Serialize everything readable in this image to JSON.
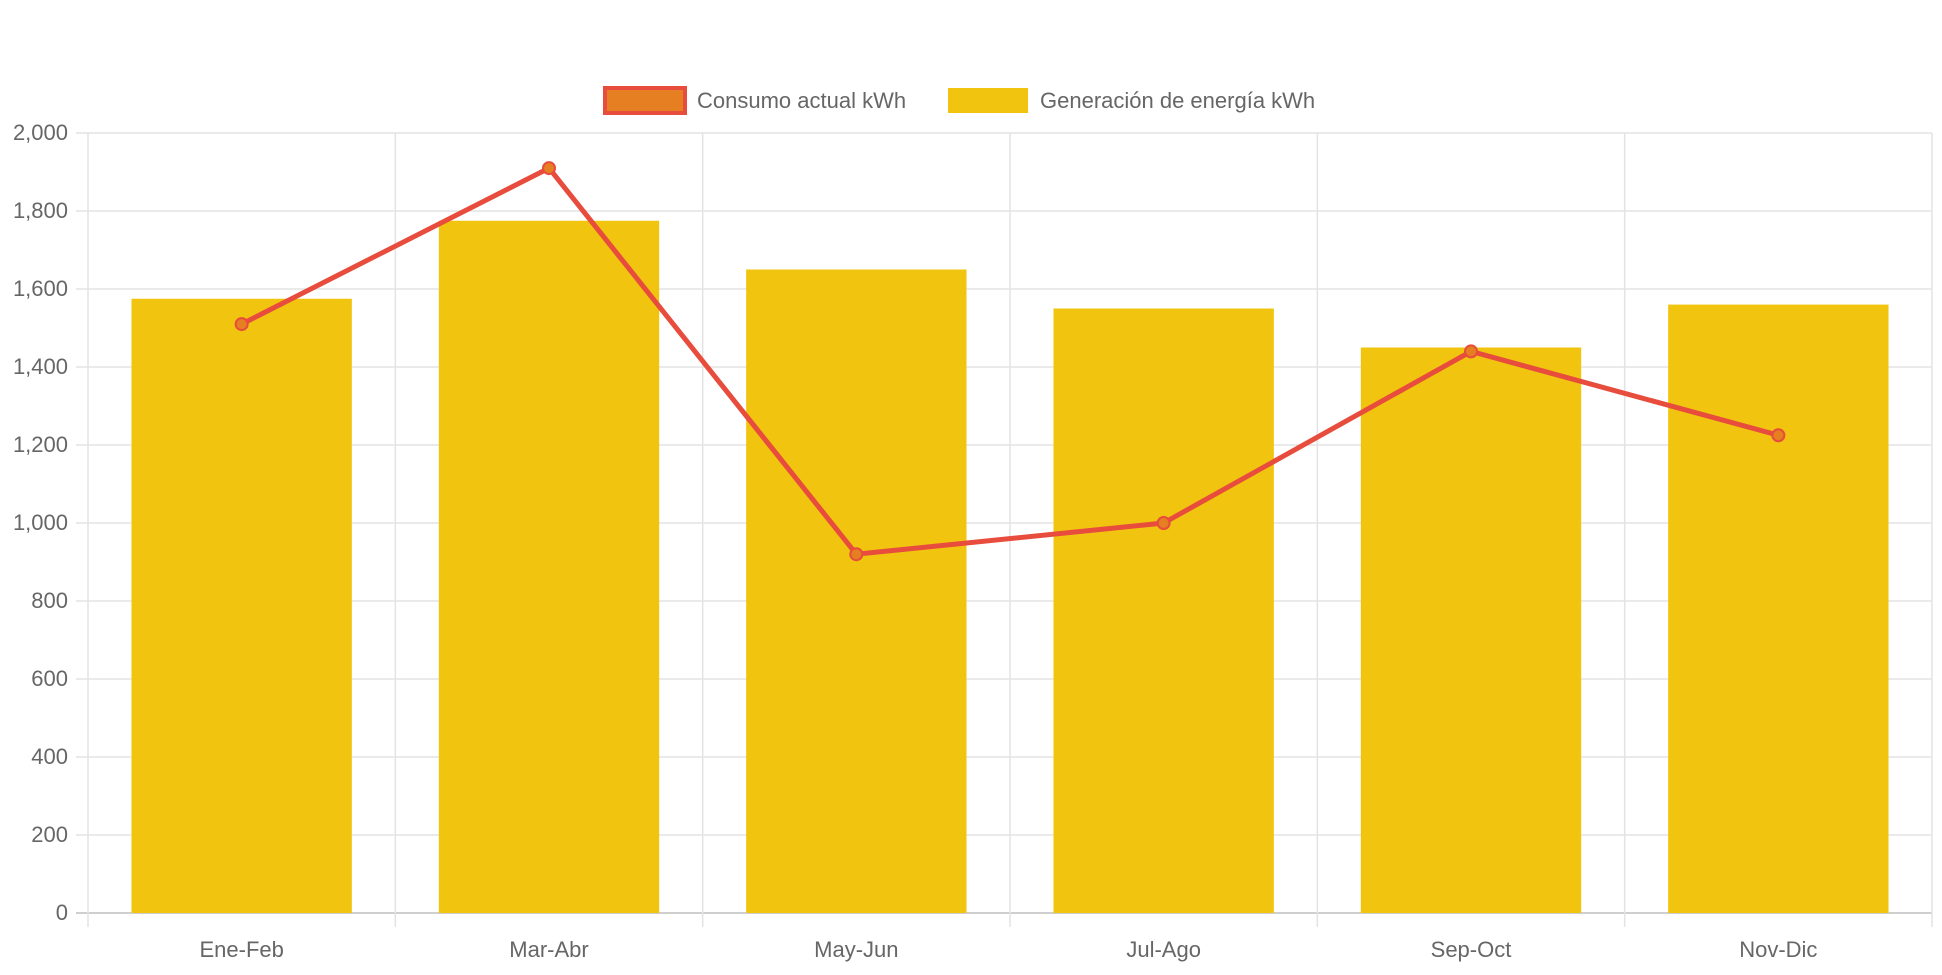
{
  "chart_data": {
    "type": "bar",
    "title": "",
    "xlabel": "",
    "ylabel": "",
    "categories": [
      "Ene-Feb",
      "Mar-Abr",
      "May-Jun",
      "Jul-Ago",
      "Sep-Oct",
      "Nov-Dic"
    ],
    "ylim": [
      0,
      2000
    ],
    "yticks": [
      0,
      200,
      400,
      600,
      800,
      1000,
      1200,
      1400,
      1600,
      1800,
      2000
    ],
    "ytick_labels": [
      "0",
      "200",
      "400",
      "600",
      "800",
      "1,000",
      "1,200",
      "1,400",
      "1,600",
      "1,800",
      "2,000"
    ],
    "grid": true,
    "legend_position": "top",
    "series": [
      {
        "name": "Consumo actual kWh",
        "type": "line",
        "color": "#E74C3C",
        "point_color": "#E67E22",
        "values": [
          1510,
          1910,
          920,
          1000,
          1440,
          1225
        ]
      },
      {
        "name": "Generación de energía kWh",
        "type": "bar",
        "color": "#F1C40F",
        "values": [
          1575,
          1775,
          1650,
          1550,
          1450,
          1560
        ]
      }
    ]
  }
}
